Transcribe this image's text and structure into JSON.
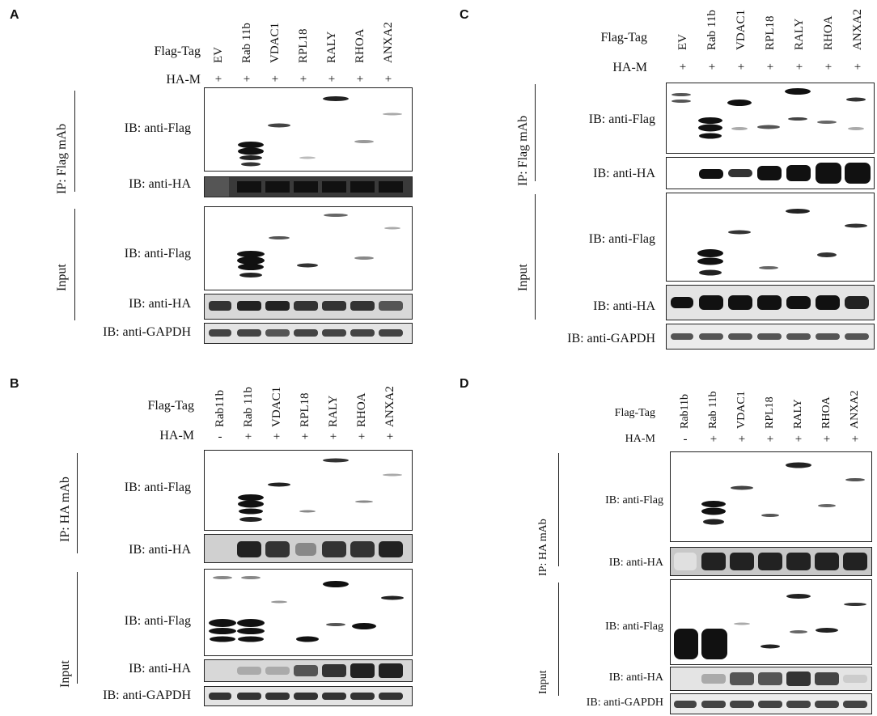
{
  "panels": {
    "A": {
      "label": "A",
      "flag_tag": "Flag-Tag",
      "ha_m": "HA-M",
      "lanes": [
        "EV",
        "Rab 11b",
        "VDAC1",
        "RPL18",
        "RALY",
        "RHOA",
        "ANXA2"
      ],
      "signs": [
        "+",
        "+",
        "+",
        "+",
        "+",
        "+",
        "+"
      ],
      "ip_label": "IP: Flag mAb",
      "input_label": "Input",
      "blots": [
        "IB: anti-Flag",
        "IB: anti-HA",
        "IB: anti-Flag",
        "IB: anti-HA",
        "IB: anti-GAPDH"
      ]
    },
    "B": {
      "label": "B",
      "flag_tag": "Flag-Tag",
      "ha_m": "HA-M",
      "lanes": [
        "Rab11b",
        "Rab 11b",
        "VDAC1",
        "RPL18",
        "RALY",
        "RHOA",
        "ANXA2"
      ],
      "signs": [
        "-",
        "+",
        "+",
        "+",
        "+",
        "+",
        "+"
      ],
      "ip_label": "IP: HA mAb",
      "input_label": "Input",
      "blots": [
        "IB: anti-Flag",
        "IB: anti-HA",
        "IB: anti-Flag",
        "IB: anti-HA",
        "IB: anti-GAPDH"
      ]
    },
    "C": {
      "label": "C",
      "flag_tag": "Flag-Tag",
      "ha_m": "HA-M",
      "lanes": [
        "EV",
        "Rab 11b",
        "VDAC1",
        "RPL18",
        "RALY",
        "RHOA",
        "ANXA2"
      ],
      "signs": [
        "+",
        "+",
        "+",
        "+",
        "+",
        "+",
        "+"
      ],
      "ip_label": "IP: Flag mAb",
      "input_label": "Input",
      "blots": [
        "IB: anti-Flag",
        "IB: anti-HA",
        "IB: anti-Flag",
        "IB: anti-HA",
        "IB: anti-GAPDH"
      ]
    },
    "D": {
      "label": "D",
      "flag_tag": "Flag-Tag",
      "ha_m": "HA-M",
      "lanes": [
        "Rab11b",
        "Rab 11b",
        "VDAC1",
        "RPL18",
        "RALY",
        "RHOA",
        "ANXA2"
      ],
      "signs": [
        "-",
        "+",
        "+",
        "+",
        "+",
        "+",
        "+"
      ],
      "ip_label": "IP: HA mAb",
      "input_label": "Input",
      "blots": [
        "IB: anti-Flag",
        "IB: anti-HA",
        "IB: anti-Flag",
        "IB: anti-HA",
        "IB: anti-GAPDH"
      ]
    }
  }
}
